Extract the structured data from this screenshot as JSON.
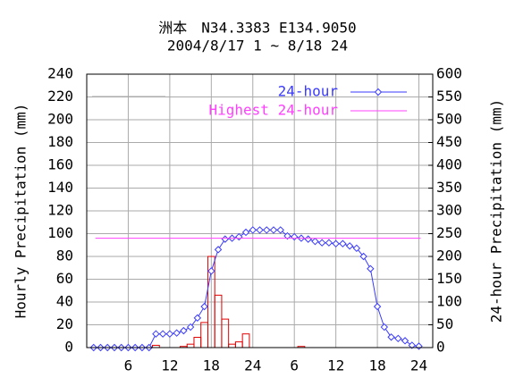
{
  "chart_data": {
    "type": "combo",
    "title": "洲本　N34.3383 E134.9050",
    "subtitle": "2004/8/17 1 ~ 8/18 24",
    "y_label": "Hourly Precipitation (mm)",
    "y2_label": "24-hour Precipitation (mm)",
    "x": [
      1,
      2,
      3,
      4,
      5,
      6,
      7,
      8,
      9,
      10,
      11,
      12,
      13,
      14,
      15,
      16,
      17,
      18,
      19,
      20,
      21,
      22,
      23,
      24,
      25,
      26,
      27,
      28,
      29,
      30,
      31,
      32,
      33,
      34,
      35,
      36,
      37,
      38,
      39,
      40,
      41,
      42,
      43,
      44,
      45,
      46,
      47,
      48
    ],
    "xlim": [
      0,
      50
    ],
    "xticks": [
      6,
      12,
      18,
      24,
      {
        "value": 30,
        "label": "6"
      },
      {
        "value": 36,
        "label": "12"
      },
      {
        "value": 42,
        "label": "18"
      },
      {
        "value": 48,
        "label": "24"
      }
    ],
    "ylim": [
      0,
      240
    ],
    "yticks": [
      0,
      20,
      40,
      60,
      80,
      100,
      120,
      140,
      160,
      180,
      200,
      220,
      240
    ],
    "y2lim": [
      0,
      600
    ],
    "y2ticks": [
      0,
      50,
      100,
      150,
      200,
      250,
      300,
      350,
      400,
      450,
      500,
      550,
      600
    ],
    "grid": true,
    "series": [
      {
        "type": "bar",
        "color": "#e00000",
        "values": [
          0,
          0,
          0,
          0,
          0,
          0,
          0,
          0,
          0,
          2,
          0,
          0,
          0,
          1,
          3,
          9,
          22,
          80,
          46,
          25,
          3,
          5,
          12,
          0,
          0,
          0,
          0,
          0,
          0,
          0,
          1,
          0,
          0,
          0,
          0,
          0,
          0,
          0,
          0,
          0,
          0,
          0,
          0,
          0,
          0,
          0,
          0,
          0
        ]
      },
      {
        "type": "line",
        "name": "24-hour",
        "color": "#3a3aff",
        "axis": "y2",
        "values": [
          0,
          0,
          0,
          0,
          0,
          0,
          0,
          0,
          0,
          30,
          30,
          30,
          32,
          37,
          45,
          65,
          90,
          168,
          215,
          238,
          240,
          243,
          253,
          258,
          258,
          258,
          258,
          258,
          245,
          243,
          240,
          238,
          233,
          230,
          230,
          228,
          228,
          223,
          218,
          200,
          173,
          90,
          45,
          23,
          20,
          15,
          5,
          3
        ]
      }
    ],
    "reference": {
      "name": "Highest 24-hour",
      "color": "#ff40ff",
      "axis": "y2",
      "value": 240
    }
  }
}
